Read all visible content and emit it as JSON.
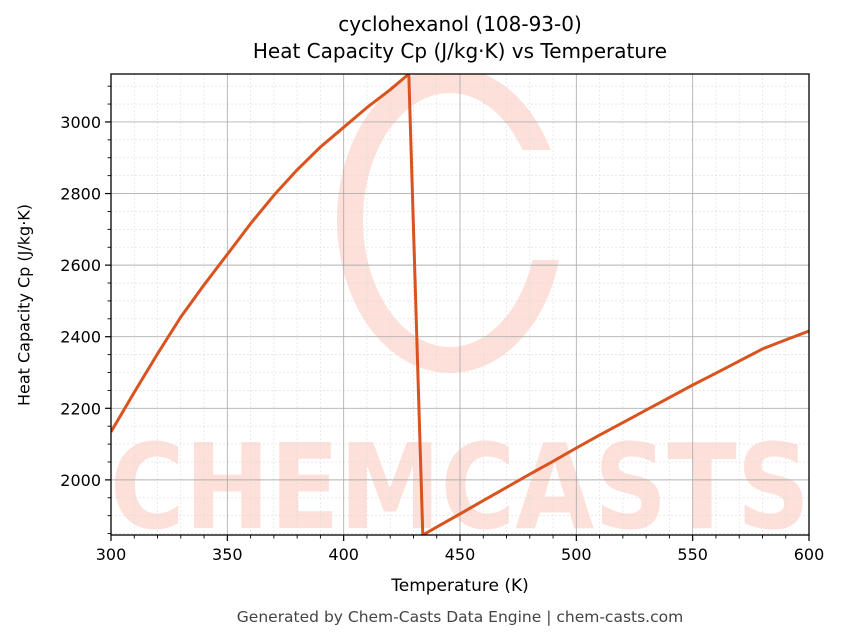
{
  "header": {
    "title_line1": "cyclohexanol (108-93-0)",
    "title_line2": "Heat Capacity Cp (J/kg·K) vs Temperature"
  },
  "footer": {
    "text": "Generated by Chem-Casts Data Engine | chem-casts.com"
  },
  "watermark": {
    "text": "CHEMCASTS",
    "color": "#fde0da"
  },
  "chart_data": {
    "type": "line",
    "title": "cyclohexanol (108-93-0)\nHeat Capacity Cp (J/kg·K) vs Temperature",
    "xlabel": "Temperature (K)",
    "ylabel": "Heat Capacity Cp (J/kg·K)",
    "xlim": [
      300,
      600
    ],
    "ylim": [
      1846,
      3134
    ],
    "xticks": [
      300,
      350,
      400,
      450,
      500,
      550,
      600
    ],
    "yticks": [
      2000,
      2200,
      2400,
      2600,
      2800,
      3000
    ],
    "grid": true,
    "minor_grid": true,
    "legend": null,
    "line_color": "#d9531e",
    "series": [
      {
        "name": "Cp",
        "x": [
          300,
          310,
          320,
          330,
          340,
          350,
          360,
          370,
          380,
          390,
          400,
          410,
          420,
          428,
          434,
          440,
          450,
          460,
          470,
          480,
          490,
          500,
          510,
          520,
          530,
          540,
          550,
          560,
          570,
          580,
          590,
          600
        ],
        "y": [
          2134,
          2245,
          2352,
          2455,
          2545,
          2630,
          2716,
          2795,
          2866,
          2930,
          2985,
          3040,
          3090,
          3134,
          1846,
          1868,
          1905,
          1942,
          1979,
          2016,
          2052,
          2089,
          2125,
          2160,
          2195,
          2230,
          2265,
          2298,
          2332,
          2366,
          2391,
          2416
        ]
      }
    ]
  }
}
